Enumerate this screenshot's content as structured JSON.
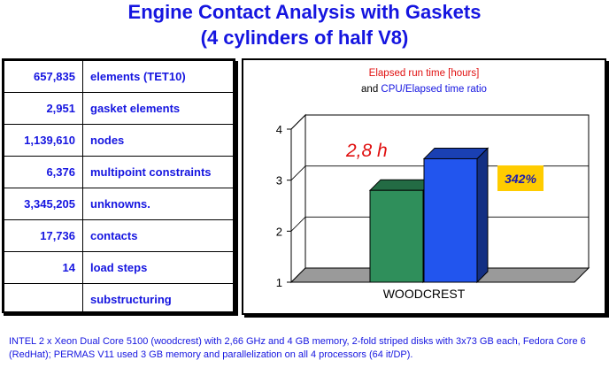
{
  "title_line1": "Engine Contact Analysis with Gaskets",
  "title_line2": "(4 cylinders of half V8)",
  "stats": [
    {
      "value": "657,835",
      "label": "elements (TET10)"
    },
    {
      "value": "2,951",
      "label": "gasket elements"
    },
    {
      "value": "1,139,610",
      "label": "nodes"
    },
    {
      "value": "6,376",
      "label": "multipoint constraints"
    },
    {
      "value": "3,345,205",
      "label": "unknowns."
    },
    {
      "value": "17,736",
      "label": "contacts"
    },
    {
      "value": "14",
      "label": "load steps"
    },
    {
      "value": "",
      "label": "substructuring"
    }
  ],
  "chart_data": {
    "type": "bar",
    "title_line1": "Elapsed run time [hours]",
    "title_line2_prefix": "and ",
    "title_line2_highlight": "CPU/Elapsed time ratio",
    "categories": [
      "WOODCREST"
    ],
    "series": [
      {
        "values": [
          2.8
        ],
        "color": "#2f8f5b",
        "data_label": "2,8 h",
        "label_color": "#e01010"
      },
      {
        "values": [
          3.42
        ],
        "color": "#2255ee",
        "data_label": "342%",
        "label_color": "#1a1ab0",
        "label_bg": "#ffcc00"
      }
    ],
    "yticks": [
      "1",
      "2",
      "3",
      "4"
    ],
    "ylim": [
      1,
      4
    ],
    "grid": true,
    "colors": {
      "title1": "#e01010",
      "title2_highlight": "#1515e0",
      "floor": "#9a9a9a"
    }
  },
  "footer": "INTEL 2 x Xeon Dual Core 5100 (woodcrest) with 2,66 GHz and 4 GB memory, 2-fold striped disks with 3x73 GB each, Fedora Core 6 (RedHat); PERMAS V11 used 3 GB memory and parallelization on all 4 processors (64 it/DP)."
}
